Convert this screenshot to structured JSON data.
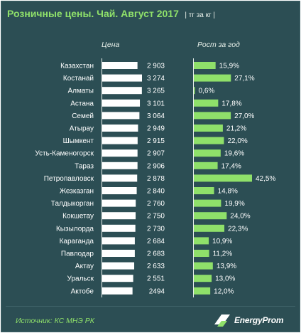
{
  "header": {
    "title": "Розничные цены. Чай. Август 2017",
    "unit": "| тг за кг |"
  },
  "columns": {
    "price": "Цена",
    "growth": "Рост за год"
  },
  "footer": {
    "source": "Источник: КС МНЭ РК",
    "logo_text": "EnergyProm"
  },
  "colors": {
    "background": "#2c4e54",
    "price_bar": "#ffffff",
    "growth_bar": "#8fe06a",
    "title": "#8fe06a"
  },
  "chart_data": {
    "type": "bar",
    "categories": [
      "Казахстан",
      "Костанай",
      "Алматы",
      "Астана",
      "Семей",
      "Атырау",
      "Шымкент",
      "Усть-Каменогорск",
      "Тараз",
      "Петропавловск",
      "Жезказган",
      "Талдыкорган",
      "Кокшетау",
      "Кызылорда",
      "Караганда",
      "Павлодар",
      "Актау",
      "Уральск",
      "Актобе"
    ],
    "series": [
      {
        "name": "Цена",
        "values": [
          2903,
          3274,
          3265,
          3101,
          3064,
          2949,
          2915,
          2907,
          2906,
          2878,
          2840,
          2760,
          2750,
          2730,
          2684,
          2683,
          2633,
          2551,
          2494
        ],
        "labels": [
          "2 903",
          "3 274",
          "3 265",
          "3 101",
          "3 064",
          "2 949",
          "2 915",
          "2 907",
          "2 906",
          "2 878",
          "2 840",
          "2 760",
          "2 750",
          "2 730",
          "2 684",
          "2 683",
          "2 633",
          "2 551",
          "2494"
        ]
      },
      {
        "name": "Рост за год",
        "values": [
          15.9,
          27.1,
          0.6,
          17.8,
          27.0,
          21.2,
          22.0,
          19.6,
          17.4,
          42.5,
          14.8,
          19.9,
          24.0,
          22.3,
          10.9,
          11.2,
          13.9,
          13.0,
          12.0
        ],
        "labels": [
          "15,9%",
          "27,1%",
          "0,6%",
          "17,8%",
          "27,0%",
          "21,2%",
          "22,0%",
          "19,6%",
          "17,4%",
          "42,5%",
          "14,8%",
          "19,9%",
          "24,0%",
          "22,3%",
          "10,9%",
          "11,2%",
          "13,9%",
          "13,0%",
          "12,0%"
        ]
      }
    ],
    "title": "Розничные цены. Чай. Август 2017",
    "xlabel": "",
    "ylabel": ""
  }
}
